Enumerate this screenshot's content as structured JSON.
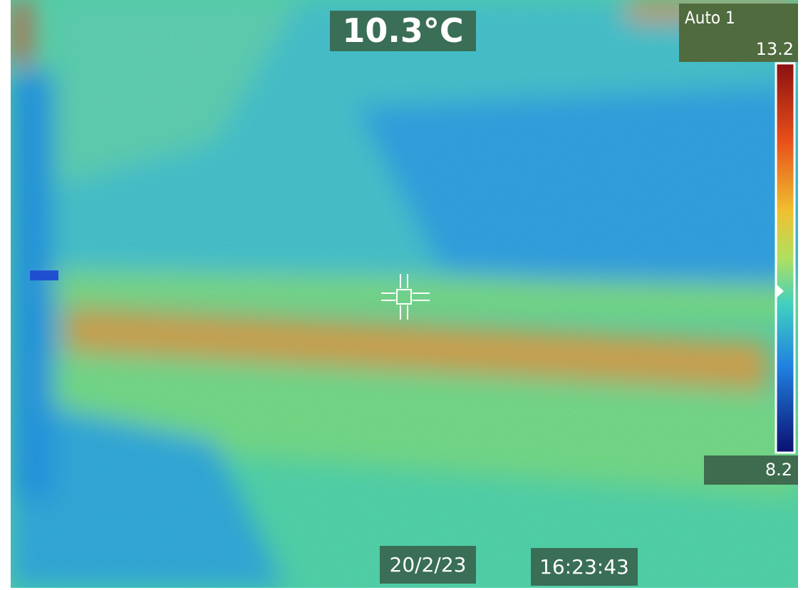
{
  "overlay": {
    "spot_temperature": "10.3°C",
    "mode": "Auto 1",
    "scale_max": 13.2,
    "scale_min": 8.2,
    "date": "20/2/23",
    "time": "16:23:43"
  }
}
